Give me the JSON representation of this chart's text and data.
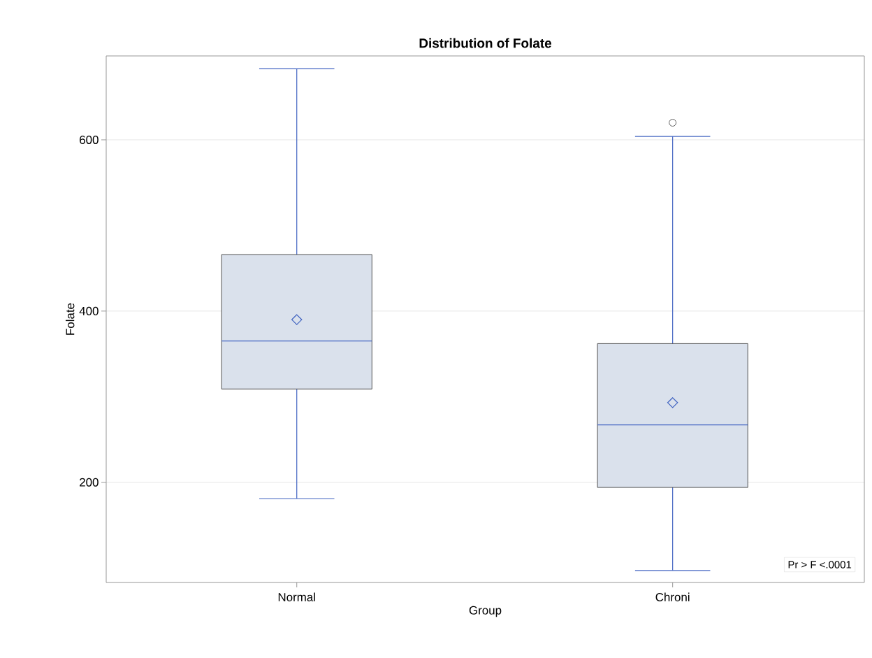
{
  "chart_data": {
    "type": "box",
    "title": "Distribution of Folate",
    "xlabel": "Group",
    "ylabel": "Folate",
    "categories": [
      "Normal",
      "Chroni"
    ],
    "boxes": [
      {
        "low": 181,
        "q1": 309,
        "median": 365,
        "q3": 466,
        "high": 683,
        "mean": 390
      },
      {
        "low": 97,
        "q1": 194,
        "median": 267,
        "q3": 362,
        "high": 604,
        "mean": 293,
        "outliers": [
          620
        ]
      }
    ],
    "color": "#dae1ec",
    "ylim": [
      83,
      698
    ],
    "yticks": [
      200,
      400,
      600
    ],
    "grid": "y",
    "annotations": [
      "Pr > F   <.0001"
    ]
  }
}
